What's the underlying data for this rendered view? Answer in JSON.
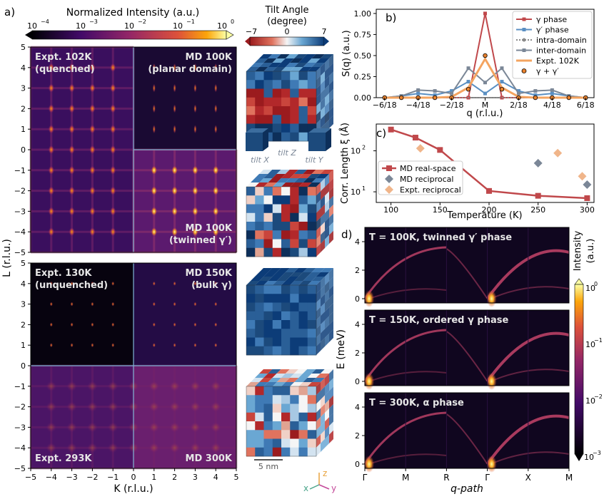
{
  "panel_letters": {
    "a": "a)",
    "b": "b)",
    "c": "c)",
    "d": "d)"
  },
  "colorbar_a": {
    "title": "Normalized Intensity (a.u.)",
    "ticks": [
      "10",
      "10",
      "10",
      "10",
      "10"
    ],
    "exponents": [
      "−4",
      "−3",
      "−2",
      "−1",
      "0"
    ]
  },
  "tilt": {
    "title_line1": "Tilt Angle",
    "title_line2": "(degree)",
    "ticks": [
      "−7",
      "0",
      "7"
    ],
    "axis_labels": {
      "tilt_x": "tilt X",
      "tilt_y": "tilt Y",
      "tilt_z": "tilt Z"
    },
    "scale_bar": "5 nm",
    "axes": {
      "z": "z",
      "x": "x",
      "y": "y"
    }
  },
  "panel_a": {
    "ylabel": "L (r.l.u.)",
    "xlabel": "K (r.l.u.)",
    "x_ticks": [
      "−5",
      "−4",
      "−3",
      "−2",
      "−1",
      "0",
      "1",
      "2",
      "3",
      "4",
      "5"
    ],
    "y_ticks": [
      "5",
      "4",
      "3",
      "2",
      "1",
      "0",
      "−1",
      "−2",
      "−3",
      "−4",
      "−5"
    ],
    "top": {
      "tl_line1": "Expt. 102K",
      "tl_line2": "(quenched)",
      "tr_line1": "MD 100K",
      "tr_line2": "(planar domain)",
      "br_line1": "MD 100K",
      "br_line2": "(twinned γ′)"
    },
    "bottom": {
      "tl_line1": "Expt. 130K",
      "tl_line2": "(unquenched)",
      "tr_line1": "MD 150K",
      "tr_line2": "(bulk γ)",
      "bl": "Expt. 293K",
      "br": "MD 300K"
    }
  },
  "chart_data": [
    {
      "type": "line",
      "panel": "b",
      "xlabel": "q (r.l.u.)",
      "ylabel": "S(q) (a.u.)",
      "x_ticks": [
        "−6/18",
        "−4/18",
        "−2/18",
        "M",
        "2/18",
        "4/18",
        "6/18"
      ],
      "y_ticks": [
        "0.00",
        "0.25",
        "0.50",
        "0.75",
        "1.00"
      ],
      "ylim": [
        0,
        1.05
      ],
      "x": [
        -6,
        -5,
        -4,
        -3,
        -2,
        -1,
        0,
        1,
        2,
        3,
        4,
        5,
        6
      ],
      "legend_position": "top-right",
      "series": [
        {
          "name": "γ phase",
          "color": "#c0484b",
          "marker": "square",
          "values": [
            0,
            0,
            0,
            0,
            0,
            0,
            1.0,
            0,
            0,
            0,
            0,
            0,
            0
          ]
        },
        {
          "name": "γ′ phase",
          "color": "#5a8fc2",
          "marker": "square",
          "values": [
            0,
            0.02,
            0.05,
            0.03,
            0.08,
            0.19,
            0.05,
            0.19,
            0.08,
            0.03,
            0.05,
            0.02,
            0
          ]
        },
        {
          "name": "intra-domain",
          "color": "#8a8a8a",
          "marker": "circle",
          "dashed": true,
          "values": [
            0,
            0,
            0,
            0,
            0,
            0,
            0,
            0,
            0,
            0,
            0,
            0,
            0
          ]
        },
        {
          "name": "inter-domain",
          "color": "#7b8797",
          "marker": "square",
          "values": [
            0,
            0.02,
            0.09,
            0.08,
            0.05,
            0.35,
            0.18,
            0.35,
            0.05,
            0.08,
            0.09,
            0.02,
            0
          ]
        },
        {
          "name": "Expt. 102K",
          "color": "#f4a460",
          "marker": "none",
          "values": [
            0,
            0,
            0,
            0,
            0.01,
            0.12,
            0.46,
            0.12,
            0.01,
            0,
            0,
            0,
            0
          ]
        },
        {
          "name": "γ + γ′",
          "color": "#e8812d",
          "marker": "dot",
          "values": [
            0,
            0,
            0,
            0,
            0,
            0.1,
            0.5,
            0.1,
            0,
            0,
            0,
            0,
            0
          ]
        }
      ]
    },
    {
      "type": "line",
      "panel": "c",
      "xlabel": "Temperature (K)",
      "ylabel": "Corr. Length ξ (Å)",
      "x_ticks": [
        "100",
        "150",
        "200",
        "250",
        "300"
      ],
      "y_ticks_base": [
        "10",
        "10"
      ],
      "y_ticks_exp": [
        "1",
        "2"
      ],
      "log_y": true,
      "xlim": [
        85,
        307
      ],
      "ylim": [
        5.5,
        450
      ],
      "legend_position": "lower-left",
      "series": [
        {
          "name": "MD real-space",
          "color": "#c0484b",
          "marker": "square",
          "x": [
            100,
            125,
            150,
            200,
            250,
            300
          ],
          "values": [
            330,
            210,
            105,
            10.5,
            8,
            7
          ]
        },
        {
          "name": "MD reciprocal",
          "color": "#7b8797",
          "marker": "diamond",
          "x": [
            250,
            300
          ],
          "values": [
            50,
            15
          ]
        },
        {
          "name": "Expt. reciprocal",
          "color": "#f0b58a",
          "marker": "diamond",
          "x": [
            130,
            270,
            295
          ],
          "values": [
            115,
            88,
            24
          ]
        }
      ]
    }
  ],
  "panel_d": {
    "ylabel": "E (meV)",
    "xlabel": "q-path",
    "path_labels": [
      "Γ",
      "M",
      "R",
      "Γ",
      "X",
      "M"
    ],
    "y_ticks": [
      "0",
      "2",
      "4"
    ],
    "subplots": [
      {
        "label": "T = 100K, twinned γ′ phase"
      },
      {
        "label": "T = 150K, ordered γ phase"
      },
      {
        "label": "T = 300K, α phase"
      }
    ],
    "colorbar": {
      "title_line1": "Intensity",
      "title_line2": "(a.u.)",
      "ticks": [
        "10",
        "10",
        "10",
        "10"
      ],
      "exponents": [
        "0",
        "−1",
        "−2",
        "−3"
      ]
    }
  }
}
